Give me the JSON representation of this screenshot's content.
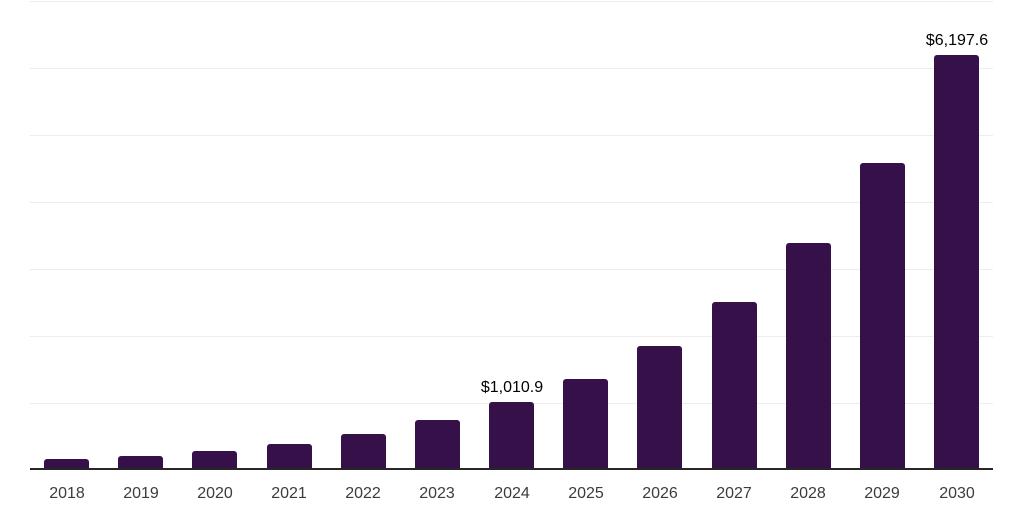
{
  "chart_data": {
    "type": "bar",
    "title": "",
    "xlabel": "",
    "ylabel": "",
    "categories": [
      "2018",
      "2019",
      "2020",
      "2021",
      "2022",
      "2023",
      "2024",
      "2025",
      "2026",
      "2027",
      "2028",
      "2029",
      "2030"
    ],
    "values": [
      165,
      210,
      285,
      390,
      540,
      748,
      1010.9,
      1360,
      1855,
      2500,
      3390,
      4585,
      6197.6
    ],
    "data_labels": [
      "",
      "",
      "",
      "",
      "",
      "",
      "$1,010.9",
      "",
      "",
      "",
      "",
      "",
      "$6,197.6"
    ],
    "ylim": [
      0,
      7000
    ],
    "grid_interval": 1000,
    "grid": true,
    "legend_position": "none",
    "colors": {
      "bar": "#361149",
      "grid": "#ededed",
      "axis": "#262626",
      "tick_label": "#3c3c3c",
      "data_label": "#000000",
      "background": "#ffffff"
    }
  }
}
